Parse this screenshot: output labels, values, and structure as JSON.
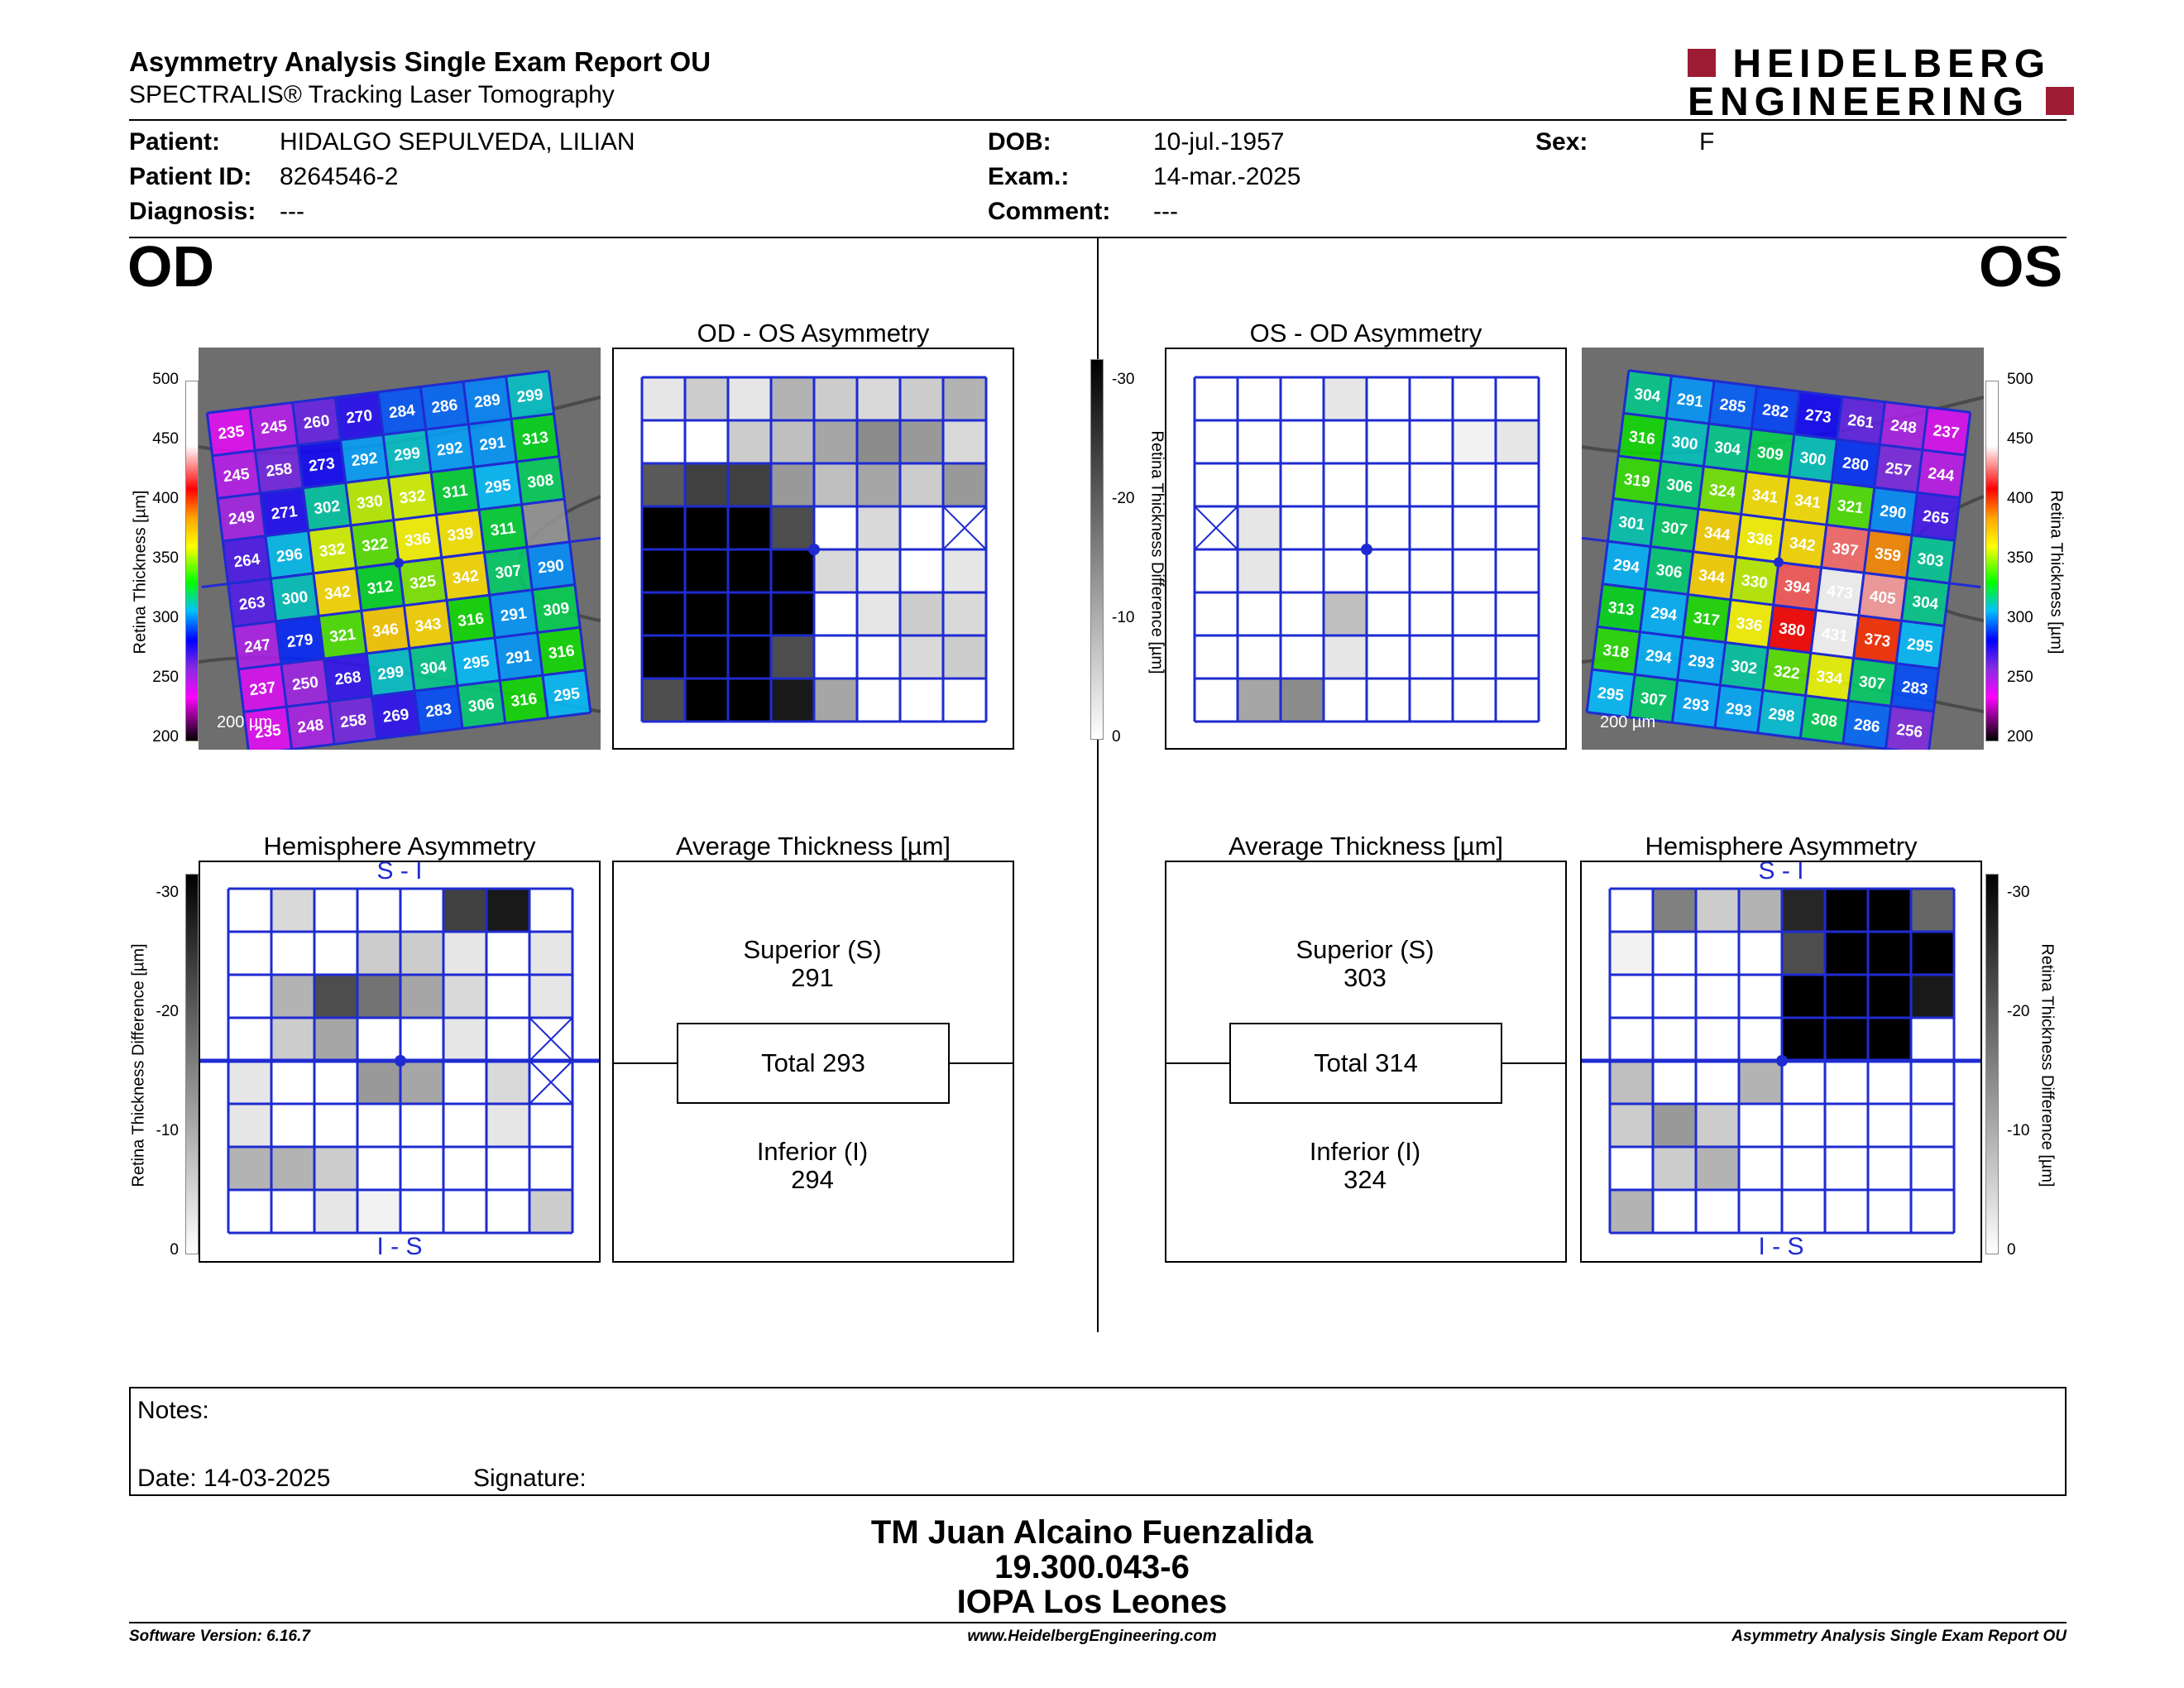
{
  "header": {
    "title": "Asymmetry Analysis Single Exam Report OU",
    "subtitle": "SPECTRALIS® Tracking Laser Tomography",
    "logo_line1": "HEIDELBERG",
    "logo_line2": "ENGINEERING",
    "brand_color": "#9e1b34"
  },
  "patient": {
    "patient_label": "Patient:",
    "patient_value": "HIDALGO SEPULVEDA, LILIAN",
    "id_label": "Patient ID:",
    "id_value": "8264546-2",
    "diagnosis_label": "Diagnosis:",
    "diagnosis_value": "---",
    "dob_label": "DOB:",
    "dob_value": "10-jul.-1957",
    "exam_label": "Exam.:",
    "exam_value": "14-mar.-2025",
    "comment_label": "Comment:",
    "comment_value": "---",
    "sex_label": "Sex:",
    "sex_value": "F"
  },
  "od": {
    "eye_label": "OD",
    "asym_title": "OD - OS Asymmetry",
    "hemi_title": "Hemisphere Asymmetry",
    "hemi_top": "S - I",
    "hemi_bottom": "I - S",
    "avg_title": "Average Thickness [µm]",
    "superior_label": "Superior (S)",
    "superior_value": "291",
    "total_label": "Total 293",
    "inferior_label": "Inferior (I)",
    "inferior_value": "294",
    "scale_label": "200 µm",
    "thickness": [
      [
        235,
        245,
        260,
        270,
        284,
        286,
        289,
        299
      ],
      [
        245,
        258,
        273,
        292,
        299,
        292,
        291,
        313
      ],
      [
        249,
        271,
        302,
        330,
        332,
        311,
        295,
        308
      ],
      [
        264,
        296,
        332,
        322,
        336,
        339,
        311,
        ""
      ],
      [
        263,
        300,
        342,
        312,
        325,
        342,
        307,
        290
      ],
      [
        247,
        279,
        321,
        346,
        343,
        316,
        291,
        309
      ],
      [
        237,
        250,
        268,
        299,
        304,
        295,
        291,
        316
      ],
      [
        235,
        248,
        258,
        269,
        283,
        306,
        316,
        295
      ]
    ],
    "asym_gray": [
      [
        0.1,
        0.2,
        0.1,
        0.3,
        0.2,
        0.15,
        0.2,
        0.3
      ],
      [
        0,
        0,
        0.2,
        0.25,
        0.35,
        0.45,
        0.4,
        0.15
      ],
      [
        0.65,
        0.75,
        0.75,
        0.4,
        0.25,
        0.35,
        0.2,
        0.4
      ],
      [
        1,
        1,
        1,
        0.7,
        0,
        0.15,
        0,
        "x"
      ],
      [
        1,
        1,
        1,
        1,
        0.15,
        0.1,
        0,
        0.1
      ],
      [
        1,
        1,
        1,
        1,
        0,
        0.1,
        0.2,
        0.15
      ],
      [
        1,
        1,
        1,
        0.7,
        0,
        0,
        0.15,
        0.2
      ],
      [
        0.7,
        1,
        1,
        0.9,
        0.35,
        0,
        0,
        0
      ]
    ],
    "hemi_gray": [
      [
        0,
        0.15,
        0,
        0,
        0,
        0.75,
        0.9,
        0
      ],
      [
        0,
        0,
        0,
        0.2,
        0.2,
        0.1,
        0,
        0.1
      ],
      [
        0,
        0.3,
        0.7,
        0.55,
        0.35,
        0.15,
        0,
        0.1
      ],
      [
        0,
        0.2,
        0.35,
        0,
        0,
        0.1,
        0,
        "x"
      ],
      [
        0.1,
        0,
        0,
        0.4,
        0.35,
        0,
        0.15,
        "x"
      ],
      [
        0.1,
        0,
        0,
        0,
        0,
        0,
        0.1,
        0
      ],
      [
        0.3,
        0.3,
        0.2,
        0,
        0,
        0,
        0,
        0
      ],
      [
        0,
        0,
        0.1,
        0.05,
        0,
        0,
        0,
        0.2
      ]
    ]
  },
  "os": {
    "eye_label": "OS",
    "asym_title": "OS - OD Asymmetry",
    "hemi_title": "Hemisphere Asymmetry",
    "hemi_top": "S - I",
    "hemi_bottom": "I - S",
    "avg_title": "Average Thickness [µm]",
    "superior_label": "Superior (S)",
    "superior_value": "303",
    "total_label": "Total 314",
    "inferior_label": "Inferior (I)",
    "inferior_value": "324",
    "scale_label": "200 µm",
    "thickness": [
      [
        304,
        291,
        285,
        282,
        273,
        261,
        248,
        237
      ],
      [
        316,
        300,
        304,
        309,
        300,
        280,
        257,
        244
      ],
      [
        319,
        306,
        324,
        341,
        341,
        321,
        290,
        265
      ],
      [
        301,
        307,
        344,
        336,
        342,
        397,
        359,
        303
      ],
      [
        294,
        306,
        344,
        330,
        394,
        473,
        405,
        304
      ],
      [
        313,
        294,
        317,
        336,
        380,
        431,
        373,
        295
      ],
      [
        318,
        294,
        293,
        302,
        322,
        334,
        307,
        283
      ],
      [
        295,
        307,
        293,
        293,
        298,
        308,
        286,
        256
      ]
    ],
    "asym_gray": [
      [
        0,
        0,
        0,
        0.1,
        0,
        0,
        0,
        0
      ],
      [
        0,
        0,
        0,
        0,
        0,
        0,
        0.05,
        0.1
      ],
      [
        0,
        0,
        0,
        0,
        0,
        0,
        0,
        0
      ],
      [
        "x",
        0.1,
        0,
        0,
        0,
        0,
        0,
        0
      ],
      [
        0,
        0.1,
        0,
        0,
        0,
        0,
        0,
        0
      ],
      [
        0,
        0,
        0,
        0.25,
        0,
        0,
        0,
        0
      ],
      [
        0,
        0,
        0,
        0.1,
        0,
        0,
        0,
        0
      ],
      [
        0,
        0.35,
        0.45,
        0,
        0,
        0,
        0,
        0
      ]
    ],
    "hemi_gray": [
      [
        0,
        0.5,
        0.2,
        0.3,
        0.85,
        1,
        1,
        0.6
      ],
      [
        0.05,
        0,
        0,
        0,
        0.7,
        1,
        1,
        1
      ],
      [
        0,
        0,
        0,
        0,
        1,
        1,
        1,
        0.9
      ],
      [
        0,
        0,
        0,
        0,
        1,
        1,
        1,
        0
      ],
      [
        0.25,
        0,
        0,
        0.3,
        0,
        0,
        0,
        0
      ],
      [
        0.2,
        0.4,
        0.2,
        0,
        0,
        0,
        0,
        0
      ],
      [
        0,
        0.2,
        0.3,
        0,
        0,
        0,
        0,
        0
      ],
      [
        0.3,
        0,
        0,
        0,
        0,
        0,
        0,
        0
      ]
    ]
  },
  "colorbars": {
    "thickness_label": "Retina Thickness [µm]",
    "thickness_ticks": [
      "500",
      "450",
      "400",
      "350",
      "300",
      "250",
      "200"
    ],
    "diff_label": "Retina Thickness Difference [µm]",
    "diff_ticks": [
      "-30",
      "-20",
      "-10",
      "0"
    ]
  },
  "notes": {
    "notes_label": "Notes:",
    "date_label": "Date: 14-03-2025",
    "signature_label": "Signature:"
  },
  "signature_block": {
    "line1": "TM Juan Alcaino Fuenzalida",
    "line2": "19.300.043-6",
    "line3": "IOPA Los Leones"
  },
  "footer": {
    "left": "Software Version: 6.16.7",
    "center": "www.HeidelbergEngineering.com",
    "right": "Asymmetry Analysis Single Exam Report OU"
  }
}
